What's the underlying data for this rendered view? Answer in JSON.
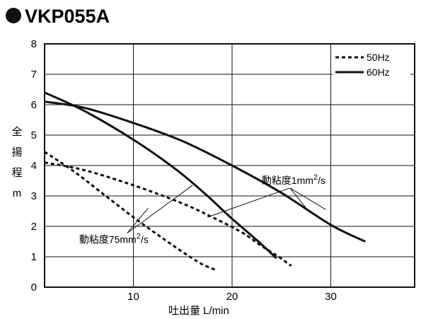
{
  "chart_data": {
    "type": "line",
    "title": "VKP055A",
    "xlabel": "吐出量 L/min",
    "ylabel": [
      "全",
      "揚",
      "程",
      "m"
    ],
    "xlim": [
      1,
      38.5
    ],
    "ylim": [
      0,
      8
    ],
    "xticks": [
      10,
      20,
      30
    ],
    "yticks": [
      0,
      1,
      2,
      3,
      4,
      5,
      6,
      7,
      8
    ],
    "grid": true,
    "legend_position": "top-right",
    "legend": [
      {
        "label": "50Hz",
        "style": "dashed"
      },
      {
        "label": "60Hz",
        "style": "solid"
      }
    ],
    "series": [
      {
        "name": "50Hz",
        "viscosity": "動粘度1mm2/s",
        "style": "dashed",
        "points": [
          [
            1,
            4.1
          ],
          [
            5,
            3.85
          ],
          [
            10,
            3.35
          ],
          [
            15,
            2.75
          ],
          [
            18,
            2.3
          ],
          [
            21,
            1.8
          ],
          [
            23,
            1.35
          ],
          [
            24.5,
            1.05
          ],
          [
            26,
            0.7
          ]
        ]
      },
      {
        "name": "50Hz",
        "viscosity": "動粘度75mm2/s",
        "style": "dashed",
        "points": [
          [
            1,
            4.45
          ],
          [
            4,
            3.8
          ],
          [
            7,
            3.05
          ],
          [
            10,
            2.3
          ],
          [
            13,
            1.6
          ],
          [
            15.5,
            1.05
          ],
          [
            17,
            0.75
          ],
          [
            18.5,
            0.55
          ]
        ]
      },
      {
        "name": "60Hz",
        "viscosity": "動粘度1mm2/s",
        "style": "solid",
        "points": [
          [
            1,
            6.1
          ],
          [
            5,
            5.9
          ],
          [
            10,
            5.4
          ],
          [
            15,
            4.8
          ],
          [
            20,
            4.0
          ],
          [
            25,
            3.1
          ],
          [
            30,
            2.05
          ],
          [
            33.5,
            1.5
          ]
        ]
      },
      {
        "name": "60Hz",
        "viscosity": "動粘度75mm2/s",
        "style": "solid",
        "points": [
          [
            1,
            6.4
          ],
          [
            5,
            5.8
          ],
          [
            10,
            4.85
          ],
          [
            14,
            3.95
          ],
          [
            17,
            3.15
          ],
          [
            20,
            2.25
          ],
          [
            22.5,
            1.55
          ],
          [
            24.5,
            0.95
          ]
        ]
      }
    ],
    "annotations": [
      {
        "base": "動粘度1mm",
        "sup": "2",
        "tail": "/s",
        "at": [
          23,
          3.4
        ],
        "targets": [
          [
            17.5,
            2.3
          ],
          [
            27.5,
            2.6
          ],
          [
            29.5,
            2.55
          ]
        ]
      },
      {
        "base": "動粘度75mm",
        "sup": "2",
        "tail": "/s",
        "at": [
          4.5,
          1.45
        ],
        "targets": [
          [
            11.5,
            2.6
          ],
          [
            16,
            3.35
          ]
        ]
      }
    ]
  }
}
